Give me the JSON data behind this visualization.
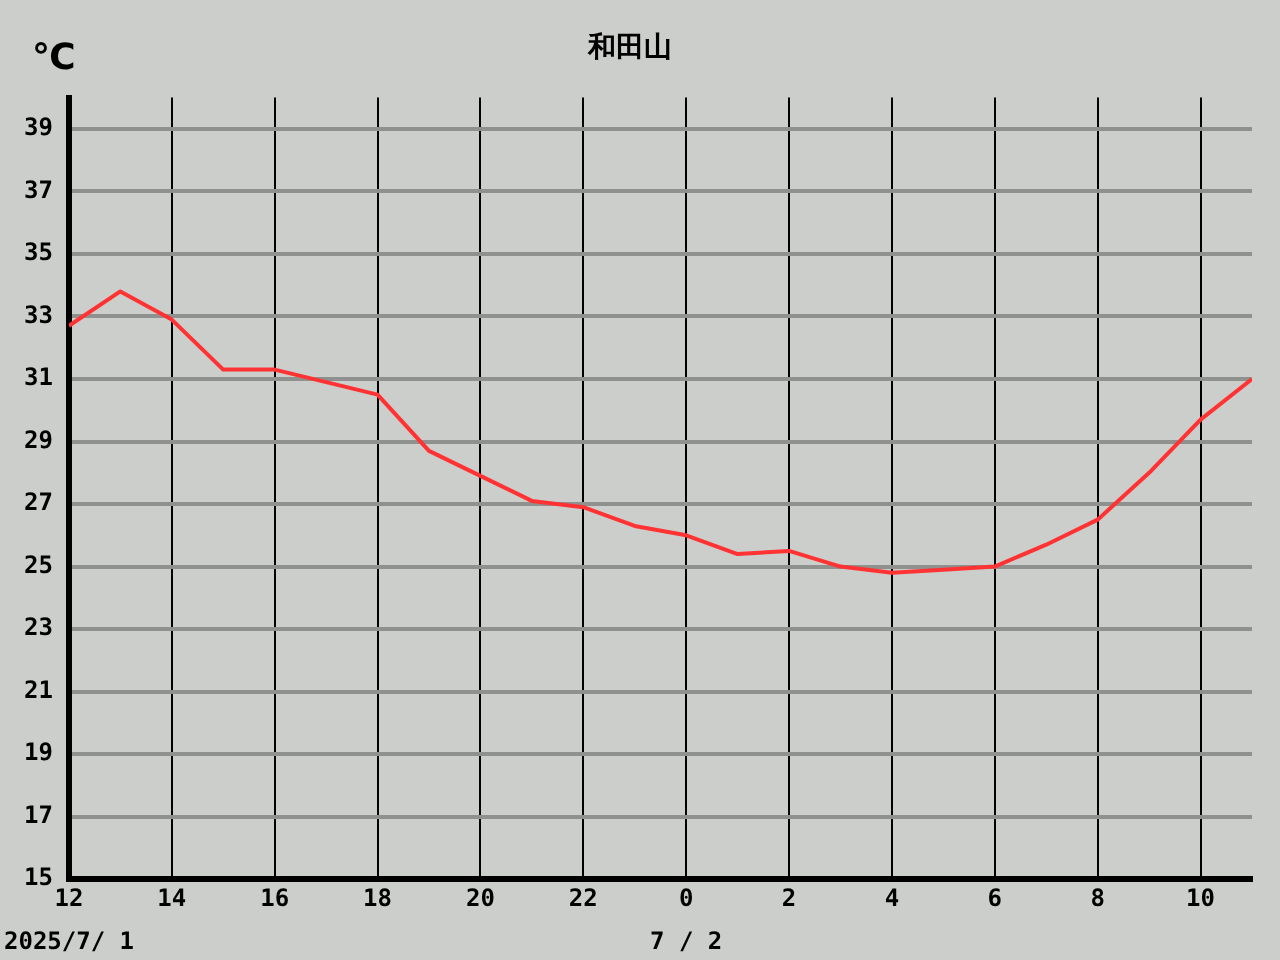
{
  "chart_data": {
    "type": "line",
    "title": "和田山",
    "ylabel": "℃",
    "x": [
      "2025-07-01T12:00",
      "2025-07-01T13:00",
      "2025-07-01T14:00",
      "2025-07-01T15:00",
      "2025-07-01T16:00",
      "2025-07-01T17:00",
      "2025-07-01T18:00",
      "2025-07-01T19:00",
      "2025-07-01T20:00",
      "2025-07-01T21:00",
      "2025-07-01T22:00",
      "2025-07-01T23:00",
      "2025-07-02T00:00",
      "2025-07-02T01:00",
      "2025-07-02T02:00",
      "2025-07-02T03:00",
      "2025-07-02T04:00",
      "2025-07-02T05:00",
      "2025-07-02T06:00",
      "2025-07-02T07:00",
      "2025-07-02T08:00",
      "2025-07-02T09:00",
      "2025-07-02T10:00",
      "2025-07-02T11:00"
    ],
    "series": [
      {
        "color": "#ff3333",
        "values": [
          32.7,
          33.8,
          32.9,
          31.3,
          31.3,
          30.9,
          30.5,
          28.7,
          27.9,
          27.1,
          26.9,
          26.3,
          26.0,
          25.4,
          25.5,
          25.0,
          24.8,
          24.9,
          25.0,
          25.7,
          26.5,
          28.0,
          29.7,
          31.0
        ]
      }
    ],
    "xlim": [
      "2025-07-01T12:00",
      "2025-07-02T11:00"
    ],
    "xticks": [
      {
        "value": "2025-07-01T12:00",
        "label": "12"
      },
      {
        "value": "2025-07-01T14:00",
        "label": "14"
      },
      {
        "value": "2025-07-01T16:00",
        "label": "16"
      },
      {
        "value": "2025-07-01T18:00",
        "label": "18"
      },
      {
        "value": "2025-07-01T20:00",
        "label": "20"
      },
      {
        "value": "2025-07-01T22:00",
        "label": "22"
      },
      {
        "value": "2025-07-02T00:00",
        "label": "0"
      },
      {
        "value": "2025-07-02T02:00",
        "label": "2"
      },
      {
        "value": "2025-07-02T04:00",
        "label": "4"
      },
      {
        "value": "2025-07-02T06:00",
        "label": "6"
      },
      {
        "value": "2025-07-02T08:00",
        "label": "8"
      },
      {
        "value": "2025-07-02T10:00",
        "label": "10"
      }
    ],
    "annotations": [
      "2025/7/ 1",
      "7 / 2"
    ],
    "ylim": [
      15,
      40
    ],
    "yticks": [
      15,
      17,
      19,
      21,
      23,
      25,
      27,
      29,
      31,
      33,
      35,
      37,
      39
    ],
    "grid": true,
    "legend": false,
    "marker": "none",
    "line_style": "solid"
  }
}
